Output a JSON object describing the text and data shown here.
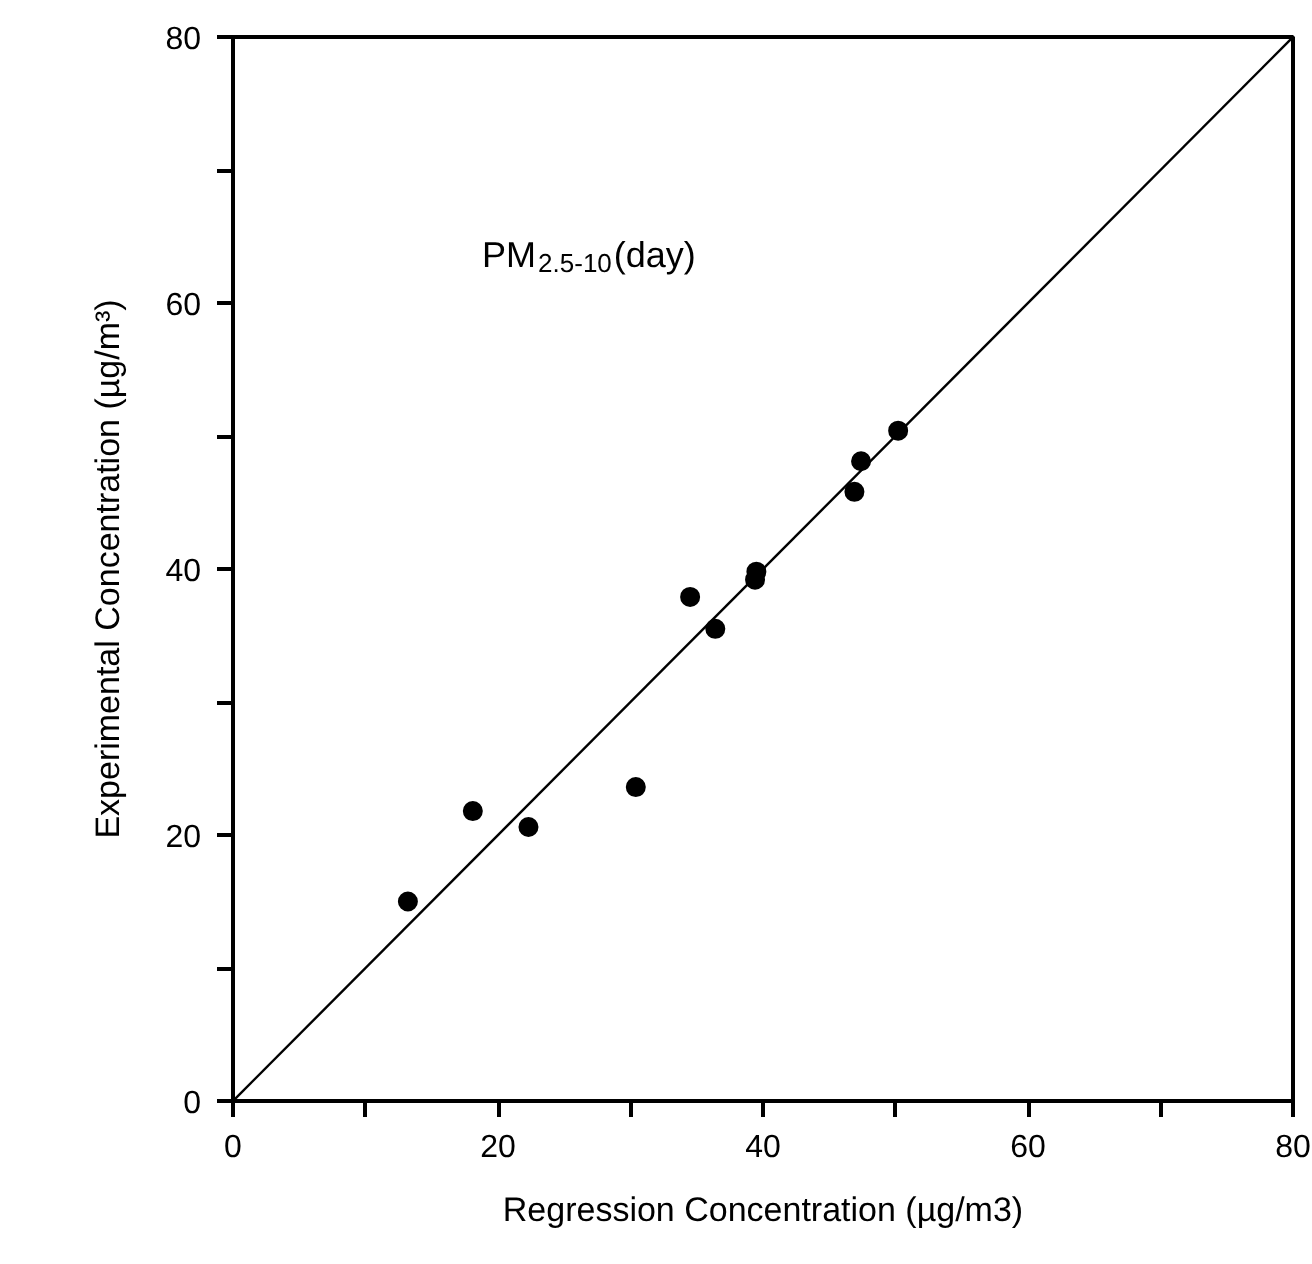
{
  "chart_data": {
    "type": "scatter",
    "xlabel": "Regression Concentration (µg/m3)",
    "ylabel": "Experimental Concentration (µg/m³)",
    "annotations": [
      "PM$_{2.5-10}$(day)"
    ],
    "xlim": [
      0,
      80
    ],
    "ylim": [
      0,
      80
    ],
    "xticks": [
      0,
      {
        "value": 10,
        "label": null
      },
      20,
      {
        "value": 30,
        "label": null
      },
      40,
      {
        "value": 50,
        "label": null
      },
      60,
      {
        "value": 70,
        "label": null
      },
      80
    ],
    "yticks": [
      0,
      {
        "value": 10,
        "label": null
      },
      20,
      {
        "value": 30,
        "label": null
      },
      40,
      {
        "value": 50,
        "label": null
      },
      60,
      {
        "value": 70,
        "label": null
      },
      80
    ],
    "grid": false,
    "marker": "circle",
    "series": [
      {
        "color": "#000000",
        "x": [
          13.2,
          18.1,
          22.3,
          30.4,
          34.5,
          36.4,
          39.4,
          39.5,
          46.9,
          47.4,
          50.2
        ],
        "values": [
          15.0,
          21.8,
          20.6,
          23.6,
          37.9,
          35.5,
          39.2,
          39.8,
          45.8,
          48.1,
          50.4
        ]
      },
      {
        "type": "line",
        "color": "#000000",
        "line_style": "solid",
        "marker": "none",
        "x": [
          0,
          80
        ],
        "values": [
          0,
          80
        ]
      }
    ]
  }
}
